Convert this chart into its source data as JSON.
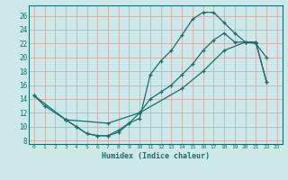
{
  "title": "",
  "xlabel": "Humidex (Indice chaleur)",
  "bg_color": "#cce8e8",
  "grid_color": "#b8d8d8",
  "line_color": "#1a6e6a",
  "xlim": [
    -0.5,
    23.5
  ],
  "ylim": [
    7.5,
    27.5
  ],
  "xticks": [
    0,
    1,
    2,
    3,
    4,
    5,
    6,
    7,
    8,
    9,
    10,
    11,
    12,
    13,
    14,
    15,
    16,
    17,
    18,
    19,
    20,
    21,
    22,
    23
  ],
  "yticks": [
    8,
    10,
    12,
    14,
    16,
    18,
    20,
    22,
    24,
    26
  ],
  "line1_x": [
    0,
    1,
    3,
    4,
    5,
    6,
    7,
    8,
    9,
    10,
    11,
    12,
    13,
    14,
    15,
    16,
    17,
    18,
    19,
    20,
    21,
    22
  ],
  "line1_y": [
    14.5,
    13.0,
    11.0,
    10.0,
    9.0,
    8.7,
    8.7,
    9.2,
    10.5,
    11.2,
    17.5,
    19.5,
    21.0,
    23.2,
    25.5,
    26.5,
    26.5,
    25.0,
    23.5,
    22.2,
    22.0,
    20.0
  ],
  "line2_x": [
    3,
    4,
    5,
    6,
    7,
    8,
    9,
    10,
    11,
    12,
    13,
    14,
    15,
    16,
    17,
    18,
    19,
    20,
    21,
    22
  ],
  "line2_y": [
    11.0,
    10.0,
    9.0,
    8.7,
    8.7,
    9.5,
    10.5,
    12.0,
    14.0,
    15.0,
    16.0,
    17.5,
    19.0,
    21.0,
    22.5,
    23.5,
    22.2,
    22.2,
    22.2,
    16.5
  ],
  "line3_x": [
    0,
    3,
    7,
    10,
    14,
    16,
    18,
    20,
    21,
    22
  ],
  "line3_y": [
    14.5,
    11.0,
    10.5,
    12.0,
    15.5,
    18.0,
    21.0,
    22.2,
    22.2,
    16.5
  ]
}
